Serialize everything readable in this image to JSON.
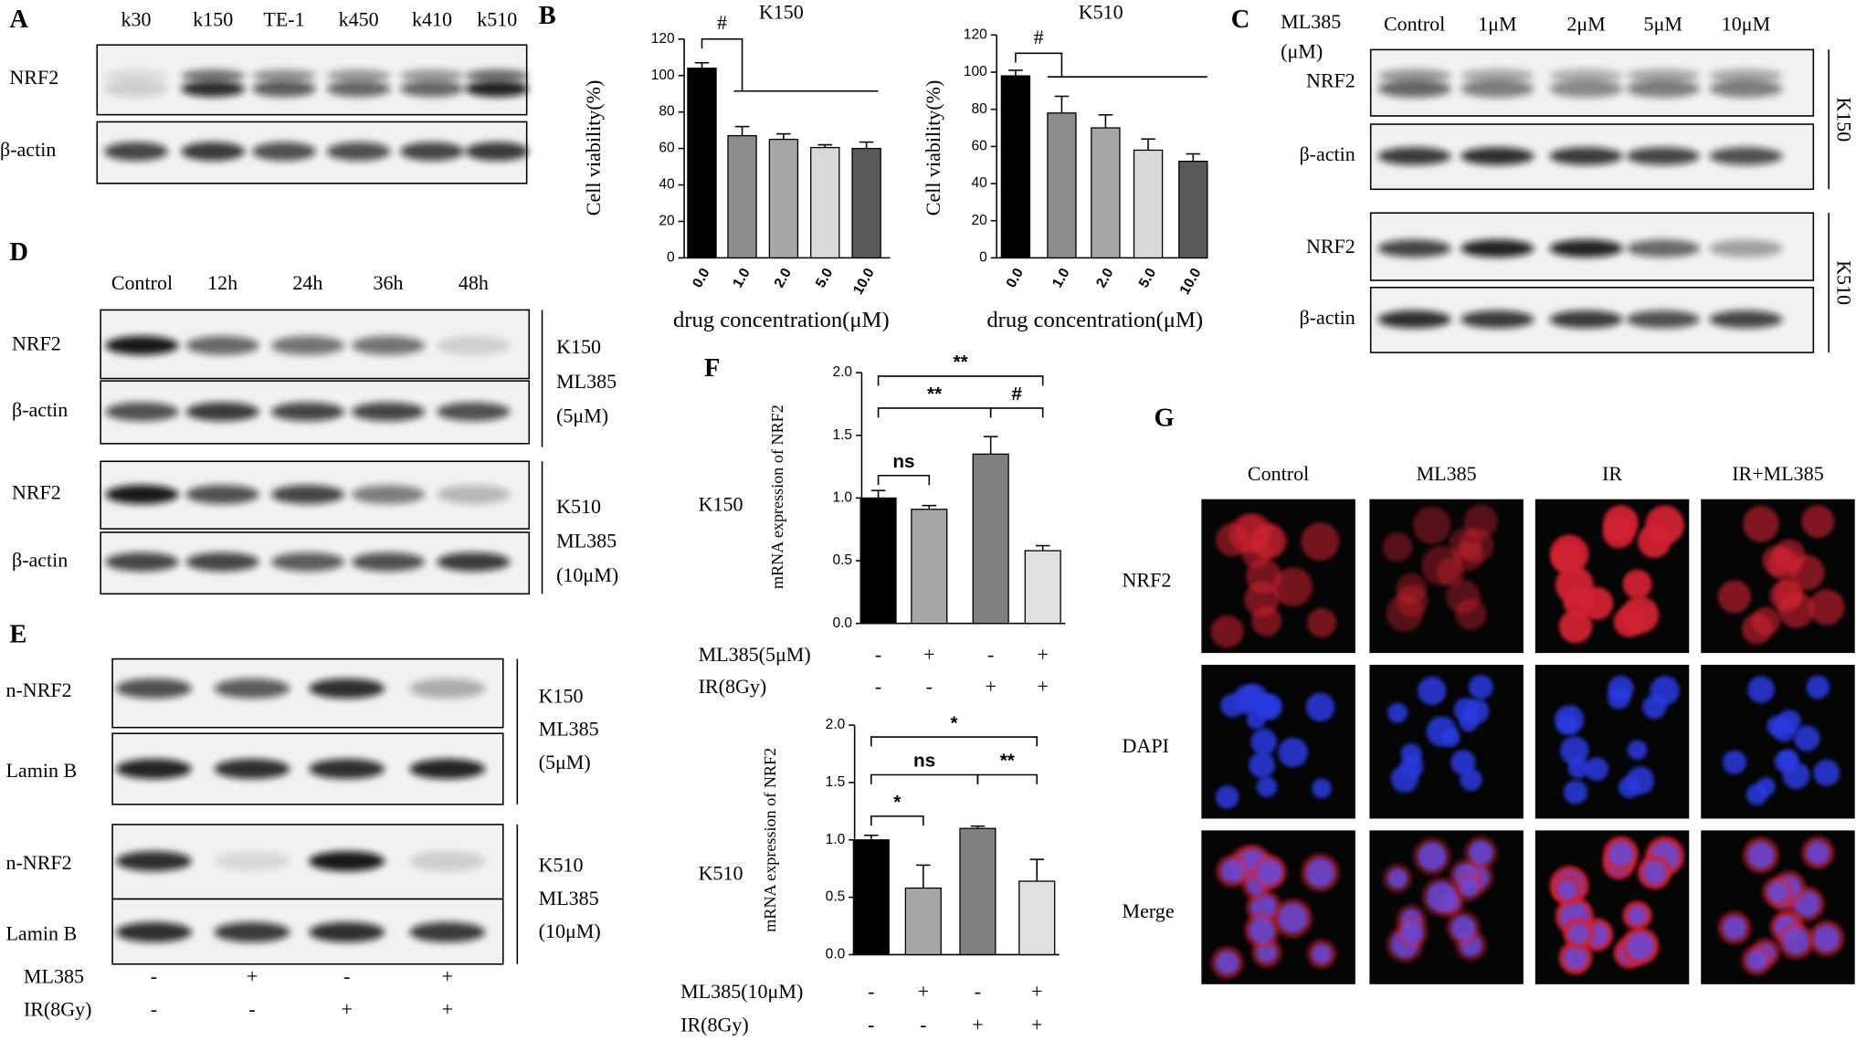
{
  "panels": {
    "A": {
      "label": "A",
      "lanes": [
        "k30",
        "k150",
        "TE-1",
        "k450",
        "k410",
        "k510"
      ],
      "rows": [
        "NRF2",
        "β-actin"
      ]
    },
    "B": {
      "label": "B"
    },
    "C": {
      "label": "C",
      "header": [
        "ML385",
        "(μM)"
      ],
      "lanes": [
        "Control",
        "1μM",
        "2μM",
        "5μM",
        "10μM"
      ],
      "rows": [
        "NRF2",
        "β-actin",
        "NRF2",
        "β-actin"
      ],
      "groups": [
        "K150",
        "K510"
      ]
    },
    "D": {
      "label": "D",
      "lanes": [
        "Control",
        "12h",
        "24h",
        "36h",
        "48h"
      ],
      "rows": [
        "NRF2",
        "β-actin",
        "NRF2",
        "β-actin"
      ],
      "groups": [
        [
          "K150",
          "ML385",
          "(5μM)"
        ],
        [
          "K510",
          "ML385",
          "(10μM)"
        ]
      ]
    },
    "E": {
      "label": "E",
      "rows": [
        "n-NRF2",
        "Lamin B",
        "n-NRF2",
        "Lamin B"
      ],
      "groups": [
        [
          "K150",
          "ML385",
          "(5μM)"
        ],
        [
          "K510",
          "ML385",
          "(10μM)"
        ]
      ],
      "treatments": [
        {
          "name": "ML385",
          "signs": [
            "-",
            "+",
            "-",
            "+"
          ]
        },
        {
          "name": "IR(8Gy)",
          "signs": [
            "-",
            "-",
            "+",
            "+"
          ]
        }
      ]
    },
    "F": {
      "label": "F"
    },
    "G": {
      "label": "G",
      "columns": [
        "Control",
        "ML385",
        "IR",
        "IR+ML385"
      ],
      "rows": [
        "NRF2",
        "DAPI",
        "Merge"
      ]
    }
  },
  "chart_data": [
    {
      "type": "bar",
      "title": "K150",
      "categories": [
        "0.0",
        "1.0",
        "2.0",
        "5.0",
        "10.0"
      ],
      "values": [
        104,
        67,
        65,
        60.5,
        60
      ],
      "errors": [
        3,
        5,
        3,
        1.5,
        3.5
      ],
      "colors": [
        "#000000",
        "#8c8c8c",
        "#a6a6a6",
        "#d9d9d9",
        "#595959"
      ],
      "ylim": [
        0,
        120
      ],
      "yticks": [
        0,
        20,
        40,
        60,
        80,
        100,
        120
      ],
      "y_label": "Cell viability(%)",
      "x_label": "drug concentration(μM)",
      "annotations": [
        "#"
      ]
    },
    {
      "type": "bar",
      "title": "K510",
      "categories": [
        "0.0",
        "1.0",
        "2.0",
        "5.0",
        "10.0"
      ],
      "values": [
        98,
        78,
        70,
        58,
        52
      ],
      "errors": [
        3,
        9,
        7,
        6,
        4
      ],
      "colors": [
        "#000000",
        "#8c8c8c",
        "#a6a6a6",
        "#d9d9d9",
        "#595959"
      ],
      "ylim": [
        0,
        120
      ],
      "yticks": [
        0,
        20,
        40,
        60,
        80,
        100,
        120
      ],
      "y_label": "Cell viability(%)",
      "x_label": "drug concentration(μM)",
      "annotations": [
        "#"
      ]
    },
    {
      "type": "bar",
      "title": "K150",
      "values": [
        1.0,
        0.91,
        1.35,
        0.58
      ],
      "errors": [
        0.06,
        0.03,
        0.14,
        0.04
      ],
      "colors": [
        "#000000",
        "#a6a6a6",
        "#808080",
        "#e0e0e0"
      ],
      "ylim": [
        0,
        2
      ],
      "yticks": [
        {
          "value": 0,
          "label": "0.0"
        },
        0.5,
        {
          "value": 1,
          "label": "1.0"
        },
        1.5,
        {
          "value": 2,
          "label": "2.0"
        }
      ],
      "y_label": "mRNA expression of NRF2",
      "annotations": [
        "**",
        "**",
        "#",
        "ns"
      ],
      "treatments": [
        {
          "name": "ML385(5μM)",
          "signs": [
            "-",
            "+",
            "-",
            "+"
          ]
        },
        {
          "name": "IR(8Gy)",
          "signs": [
            "-",
            "-",
            "+",
            "+"
          ]
        }
      ]
    },
    {
      "type": "bar",
      "title": "K510",
      "values": [
        1.0,
        0.58,
        1.1,
        0.64
      ],
      "errors": [
        0.04,
        0.2,
        0.02,
        0.19
      ],
      "colors": [
        "#000000",
        "#a6a6a6",
        "#808080",
        "#e0e0e0"
      ],
      "ylim": [
        0,
        2
      ],
      "yticks": [
        {
          "value": 0,
          "label": "0.0"
        },
        0.5,
        {
          "value": 1,
          "label": "1.0"
        },
        1.5,
        {
          "value": 2,
          "label": "2.0"
        }
      ],
      "y_label": "mRNA expression of NRF2",
      "annotations": [
        "*",
        "ns",
        "**",
        "*"
      ],
      "treatments": [
        {
          "name": "ML385(10μM)",
          "signs": [
            "-",
            "+",
            "-",
            "+"
          ]
        },
        {
          "name": "IR(8Gy)",
          "signs": [
            "-",
            "-",
            "+",
            "+"
          ]
        }
      ]
    }
  ]
}
